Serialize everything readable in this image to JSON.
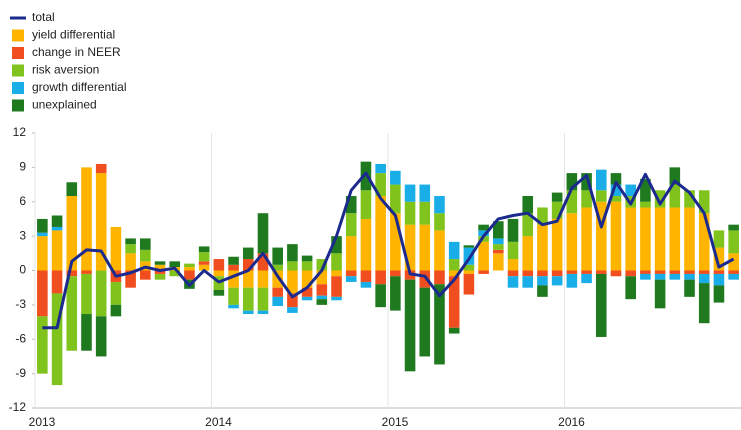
{
  "chart_data": {
    "type": "stacked-bar-line",
    "categories": [
      "2013",
      null,
      null,
      null,
      null,
      null,
      null,
      null,
      null,
      null,
      null,
      null,
      "2014",
      null,
      null,
      null,
      null,
      null,
      null,
      null,
      null,
      null,
      null,
      null,
      "2015",
      null,
      null,
      null,
      null,
      null,
      null,
      null,
      null,
      null,
      null,
      null,
      "2016",
      null,
      null,
      null,
      null,
      null,
      null,
      null,
      null,
      null,
      null,
      null
    ],
    "ylim": [
      -12,
      12
    ],
    "yticks": [
      -12,
      -9,
      -6,
      -3,
      0,
      3,
      6,
      9,
      12
    ],
    "legend": "top-left",
    "series": [
      {
        "name": "total",
        "kind": "line",
        "color": "#1b2a8c",
        "values": [
          -5,
          -5,
          0.8,
          1.8,
          1.7,
          -0.5,
          -0.2,
          0.3,
          0,
          0.2,
          -1.3,
          0,
          -1,
          -0.5,
          0,
          1.5,
          -0.5,
          -2.3,
          -1.5,
          0,
          3,
          7,
          8.5,
          6.3,
          4.8,
          -0.3,
          -0.5,
          -2.2,
          -0.8,
          1,
          3,
          4.5,
          4.8,
          5,
          4,
          4.3,
          7.2,
          8.3,
          3.8,
          7.7,
          5.8,
          8.4,
          5.8,
          7.8,
          6.8,
          5,
          0.3,
          1
        ]
      },
      {
        "name": "yield differential",
        "kind": "bar",
        "color": "#ffb400",
        "values": [
          3,
          3.5,
          6.5,
          9,
          8.5,
          3.8,
          1.5,
          0.8,
          0.5,
          0.3,
          0.3,
          0.5,
          -0.5,
          -1.5,
          -1.5,
          -1.5,
          -1.5,
          -2,
          -1.5,
          -1.2,
          -0.5,
          3,
          4.5,
          6.5,
          5,
          4,
          4,
          3.5,
          -0.5,
          -0.3,
          2.5,
          1.5,
          1,
          3,
          4,
          4.5,
          5,
          5.5,
          6,
          6,
          5.5,
          5.5,
          5.5,
          5.5,
          5.5,
          5,
          2,
          1.5
        ]
      },
      {
        "name": "change in NEER",
        "kind": "bar",
        "color": "#f04e1e",
        "values": [
          -4,
          -2,
          -0.5,
          -0.3,
          0.8,
          -1,
          -1.5,
          -0.8,
          -0.3,
          0,
          -0.8,
          0.3,
          1,
          0.5,
          1,
          1.5,
          -0.8,
          -1.2,
          -0.8,
          -1,
          -1.8,
          -0.5,
          -1,
          -1.2,
          -0.5,
          -0.8,
          -1.5,
          -1.2,
          -4.5,
          -1.8,
          -0.3,
          0.3,
          -0.5,
          -0.5,
          -0.5,
          -0.5,
          -0.3,
          -0.3,
          -0.3,
          -0.5,
          -0.5,
          -0.3,
          -0.3,
          -0.3,
          -0.3,
          -0.3,
          -0.3,
          -0.3
        ]
      },
      {
        "name": "risk aversion",
        "kind": "bar",
        "color": "#7fc31c",
        "values": [
          -5,
          -8,
          -6.5,
          -3.5,
          -4,
          -2,
          0.8,
          1,
          -0.5,
          -0.5,
          0.3,
          0.8,
          -1.2,
          -1.5,
          -2,
          -2,
          0.5,
          0.8,
          0.8,
          1,
          1.5,
          2,
          2.5,
          2,
          2.5,
          2,
          2,
          1.5,
          1,
          0.5,
          0.5,
          0.5,
          1.5,
          2,
          1.5,
          1.5,
          2,
          1.5,
          1,
          0.5,
          1,
          0.5,
          1.5,
          2,
          1.5,
          2,
          1.5,
          2
        ]
      },
      {
        "name": "growth differential",
        "kind": "bar",
        "color": "#1aaee8",
        "values": [
          0.3,
          0.3,
          0,
          0,
          0,
          0,
          0,
          0,
          0,
          0,
          0,
          0,
          0,
          -0.3,
          -0.3,
          -0.3,
          -0.8,
          -0.5,
          -0.3,
          -0.3,
          -0.3,
          -0.5,
          -0.5,
          0.8,
          1.2,
          1.5,
          1.5,
          1.5,
          1.5,
          1.5,
          0.5,
          0.5,
          -1,
          -1,
          -0.8,
          -0.8,
          -1.2,
          -0.8,
          1.8,
          1,
          1,
          -0.5,
          -0.5,
          -0.5,
          -0.5,
          -0.8,
          -1,
          -0.5
        ]
      },
      {
        "name": "unexplained",
        "kind": "bar",
        "color": "#1f7a1f",
        "values": [
          1.2,
          1,
          1.2,
          -3.2,
          -3.5,
          -1,
          0.5,
          1,
          0.3,
          0.5,
          -0.8,
          0.5,
          -0.5,
          0.7,
          1,
          3.5,
          1.5,
          1.5,
          0.5,
          -0.5,
          1.5,
          1.5,
          2.5,
          -2,
          -3,
          -8,
          -6,
          -7,
          -0.5,
          0.2,
          0.5,
          1.5,
          2,
          1.5,
          -1,
          0.8,
          1.5,
          1.5,
          -5.5,
          1,
          -2,
          2,
          -2.5,
          1.5,
          -1.5,
          -3.5,
          -1.5,
          0.5
        ]
      }
    ]
  }
}
